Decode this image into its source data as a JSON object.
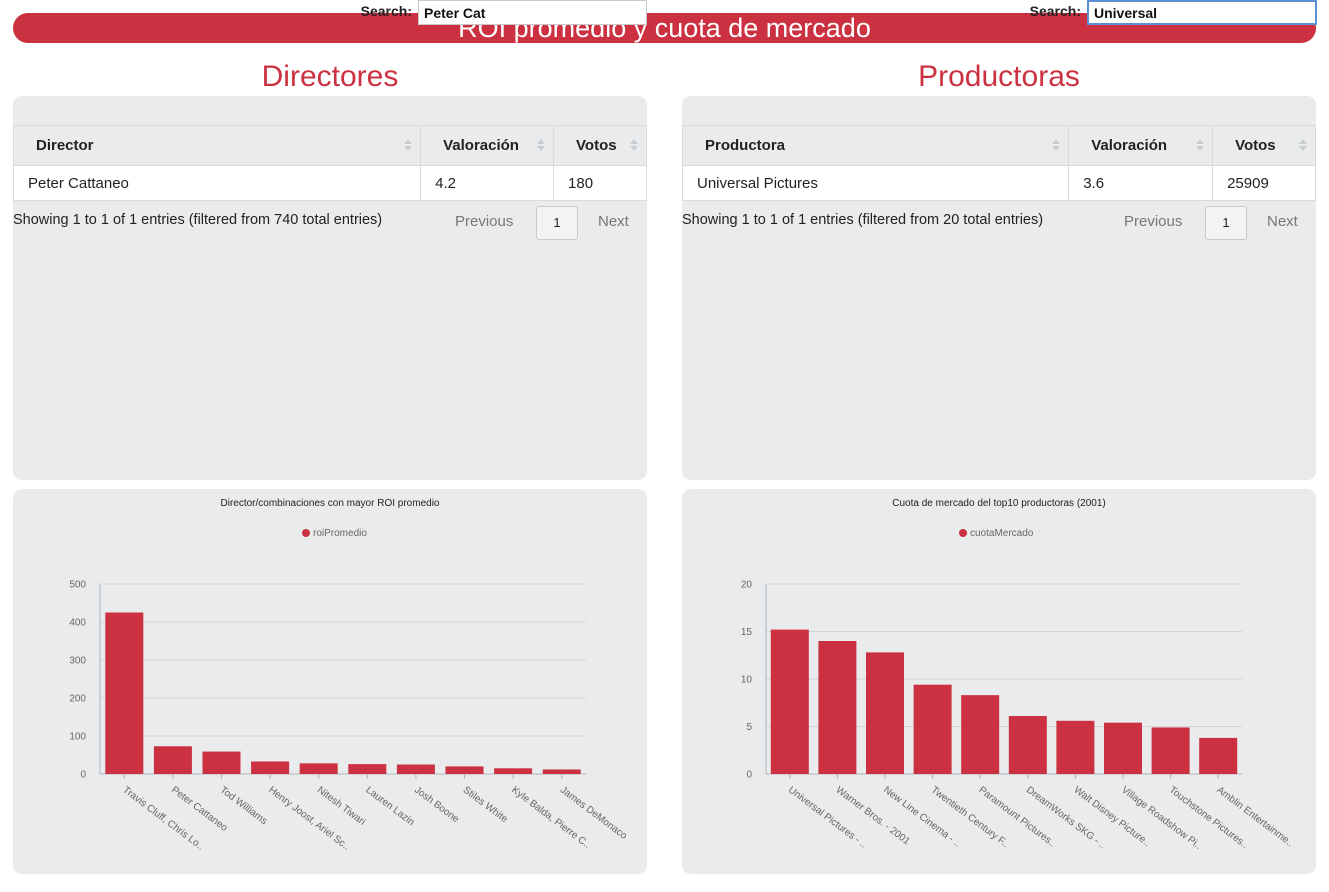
{
  "header": {
    "title": "ROI promedio y cuota de mercado"
  },
  "colors": {
    "accent": "#cb3141",
    "panel_bg": "#e9ebec"
  },
  "directors": {
    "title": "Directores",
    "search_label": "Search:",
    "search_value": "Peter Cat",
    "columns": [
      "Director",
      "Valoración",
      "Votos"
    ],
    "rows": [
      [
        "Peter Cattaneo",
        "4.2",
        "180"
      ]
    ],
    "info": "Showing 1 to 1 of 1 entries (filtered from 740 total entries)",
    "previous": "Previous",
    "page": "1",
    "next": "Next"
  },
  "producers": {
    "title": "Productoras",
    "search_label": "Search:",
    "search_value": "Universal",
    "columns": [
      "Productora",
      "Valoración",
      "Votos"
    ],
    "rows": [
      [
        "Universal Pictures",
        "3.6",
        "25909"
      ]
    ],
    "info": "Showing 1 to 1 of 1 entries (filtered from 20 total entries)",
    "previous": "Previous",
    "page": "1",
    "next": "Next"
  },
  "chart_data": [
    {
      "type": "bar",
      "title": "Director/combinaciones con mayor ROI promedio",
      "series": [
        {
          "name": "roiPromedio",
          "values": [
            425,
            73,
            59,
            33,
            28,
            26,
            25,
            20,
            15,
            12
          ]
        }
      ],
      "categories": [
        "Travis Cluff, Chris Lo..",
        "Peter Cattaneo",
        "Tod Williams",
        "Henry Joost, Ariel Sc..",
        "Nitesh Tiwari",
        "Lauren Lazin",
        "Josh Boone",
        "Stiles White",
        "Kyle Balda, Pierre C..",
        "James DeMonaco"
      ],
      "ylim": [
        0,
        500
      ],
      "yticks": [
        0,
        100,
        200,
        300,
        400,
        500
      ],
      "grid": true,
      "legend": "top-center"
    },
    {
      "type": "bar",
      "title": "Cuota de mercado del top10 productoras (2001)",
      "series": [
        {
          "name": "cuotaMercado",
          "values": [
            15.2,
            14.0,
            12.8,
            9.4,
            8.3,
            6.1,
            5.6,
            5.4,
            4.9,
            3.8
          ]
        }
      ],
      "categories": [
        "Universal Pictures - ..",
        "Warner Bros. - 2001",
        "New Line Cinema - ..",
        "Twentieth Century F..",
        "Paramount Pictures..",
        "DreamWorks SKG - ..",
        "Walt Disney Picture..",
        "Village Roadshow Pi..",
        "Touchstone Pictures..",
        "Amblin Entertainme.."
      ],
      "ylim": [
        0,
        20
      ],
      "yticks": [
        0,
        5,
        10,
        15,
        20
      ],
      "grid": true,
      "legend": "top-center"
    }
  ]
}
